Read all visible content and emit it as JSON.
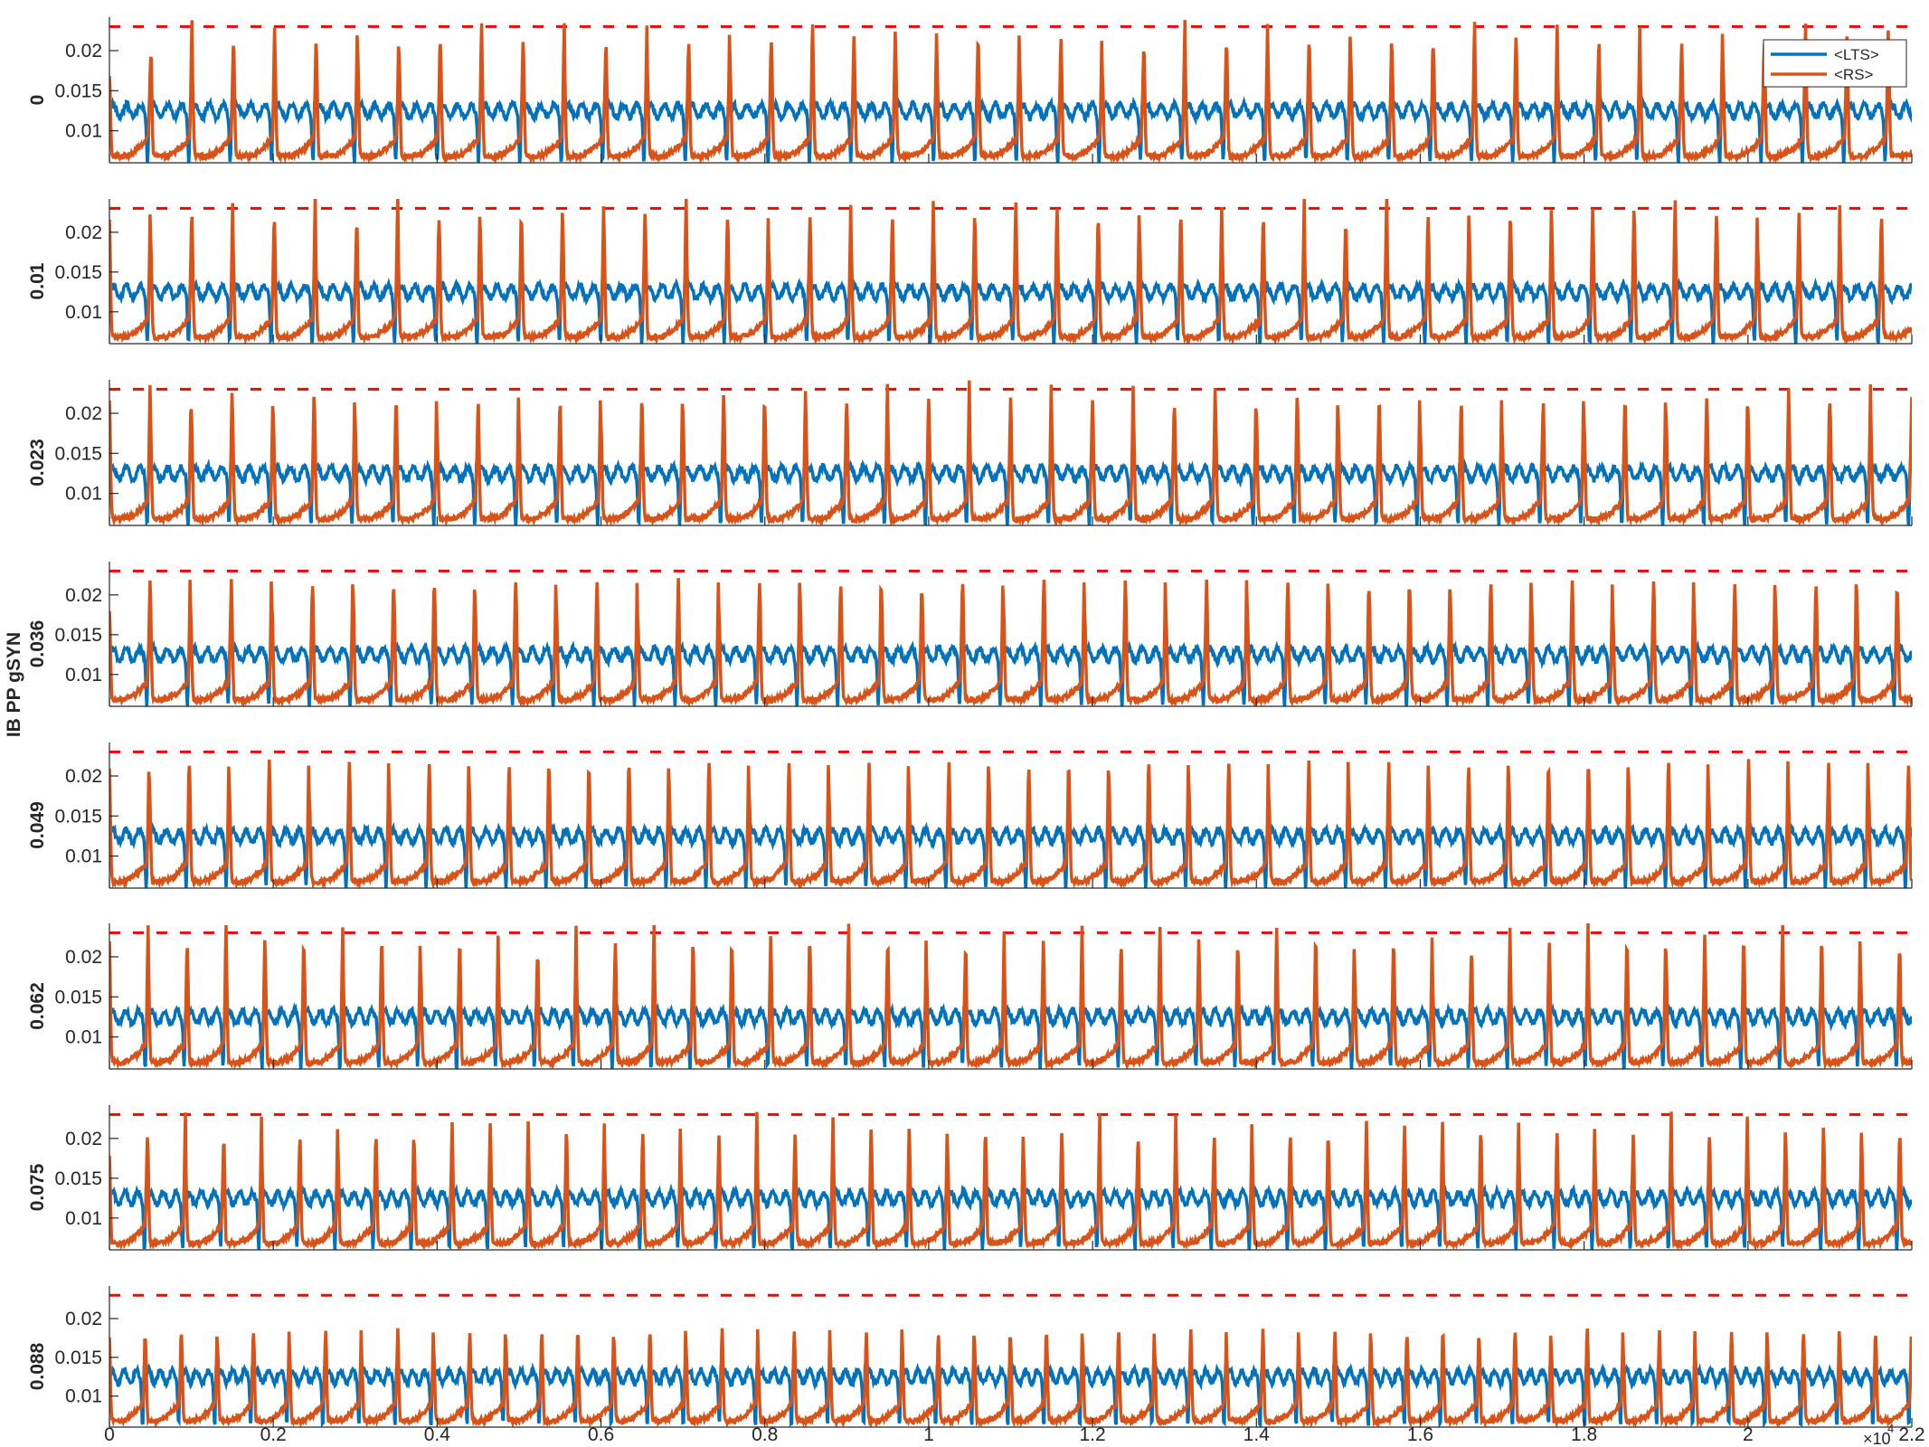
{
  "figure": {
    "ylabel": "IB PP gSYN",
    "x_exponent_base": "×10",
    "x_exponent": "4"
  },
  "colors": {
    "lts": "#0072BD",
    "rs": "#D95319",
    "threshold": "#FF0000",
    "axes": "#262626"
  },
  "legend": {
    "placement": "top-right",
    "entries": [
      "<LTS>",
      "<RS>"
    ]
  },
  "chart_data": {
    "type": "line",
    "layout": "8 vertically stacked subplots sharing x axis",
    "xlim": [
      0,
      22000
    ],
    "x_ticks": [
      0,
      2000,
      4000,
      6000,
      8000,
      10000,
      12000,
      14000,
      16000,
      18000,
      20000,
      22000
    ],
    "x_tick_labels": [
      "0",
      "0.2",
      "0.4",
      "0.6",
      "0.8",
      "1",
      "1.2",
      "1.4",
      "1.6",
      "1.8",
      "2",
      "2.2"
    ],
    "x_exponent_label": "×10^4",
    "ylim": [
      0.006,
      0.0235
    ],
    "y_ticks": [
      0.01,
      0.015,
      0.02
    ],
    "y_tick_labels": [
      "0.01",
      "0.015",
      "0.02"
    ],
    "grid": false,
    "threshold_line": {
      "style": "dashed",
      "y": 0.023
    },
    "series_names": [
      "<LTS>",
      "<RS>"
    ],
    "lts_baseline": 0.0125,
    "lts_trough": 0.0068,
    "rs_trough": 0.0068,
    "subplots": [
      {
        "label": "0",
        "period": 505,
        "rs_peak": 0.02
      },
      {
        "label": "0.01",
        "period": 503,
        "rs_peak": 0.0208
      },
      {
        "label": "0.023",
        "period": 500,
        "rs_peak": 0.0205
      },
      {
        "label": "0.036",
        "period": 496,
        "rs_peak": 0.0205
      },
      {
        "label": "0.049",
        "period": 488,
        "rs_peak": 0.0205
      },
      {
        "label": "0.062",
        "period": 475,
        "rs_peak": 0.0205
      },
      {
        "label": "0.075",
        "period": 465,
        "rs_peak": 0.0195
      },
      {
        "label": "0.088",
        "period": 440,
        "rs_peak": 0.0175
      }
    ]
  }
}
